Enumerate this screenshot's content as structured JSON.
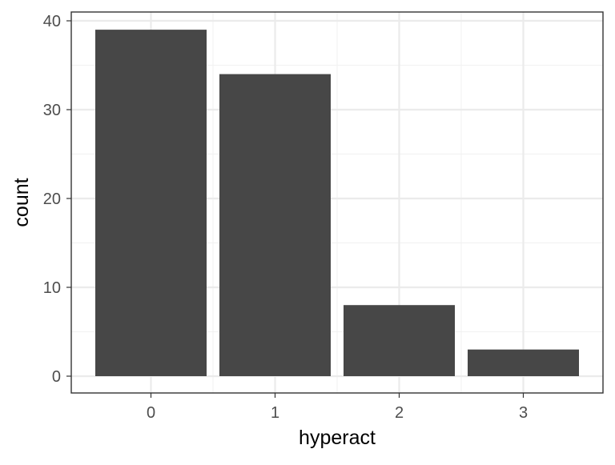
{
  "chart_data": {
    "type": "bar",
    "title": "",
    "xlabel": "hyperact",
    "ylabel": "count",
    "categories": [
      "0",
      "1",
      "2",
      "3"
    ],
    "values": [
      39,
      34,
      8,
      3
    ],
    "ylim": [
      0,
      40
    ],
    "yticks": [
      0,
      10,
      20,
      30,
      40
    ],
    "grid": true,
    "legend": "none",
    "theme": "bw",
    "bar_color": "#474747",
    "grid_major_color": "#ebebeb",
    "grid_minor_color": "#f2f2f2",
    "panel_border_color": "#333333"
  }
}
